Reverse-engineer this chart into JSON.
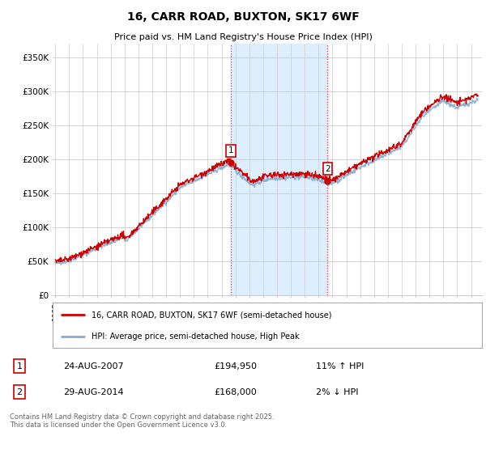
{
  "title": "16, CARR ROAD, BUXTON, SK17 6WF",
  "subtitle": "Price paid vs. HM Land Registry's House Price Index (HPI)",
  "ylabel_ticks": [
    "£0",
    "£50K",
    "£100K",
    "£150K",
    "£200K",
    "£250K",
    "£300K",
    "£350K"
  ],
  "ytick_values": [
    0,
    50000,
    100000,
    150000,
    200000,
    250000,
    300000,
    350000
  ],
  "ylim": [
    0,
    370000
  ],
  "xlim_start": 1994.8,
  "xlim_end": 2025.8,
  "legend_line1": "16, CARR ROAD, BUXTON, SK17 6WF (semi-detached house)",
  "legend_line2": "HPI: Average price, semi-detached house, High Peak",
  "annotation1_date": "24-AUG-2007",
  "annotation1_price": "£194,950",
  "annotation1_hpi": "11% ↑ HPI",
  "annotation2_date": "29-AUG-2014",
  "annotation2_price": "£168,000",
  "annotation2_hpi": "2% ↓ HPI",
  "vline1_x": 2007.65,
  "vline2_x": 2014.65,
  "sale1_x": 2007.65,
  "sale1_y": 194950,
  "sale2_x": 2014.65,
  "sale2_y": 168000,
  "footer": "Contains HM Land Registry data © Crown copyright and database right 2025.\nThis data is licensed under the Open Government Licence v3.0.",
  "line_color_red": "#cc0000",
  "line_color_blue": "#88aacc",
  "shade_color": "#ddeeff",
  "background_color": "#ffffff",
  "grid_color": "#cccccc"
}
